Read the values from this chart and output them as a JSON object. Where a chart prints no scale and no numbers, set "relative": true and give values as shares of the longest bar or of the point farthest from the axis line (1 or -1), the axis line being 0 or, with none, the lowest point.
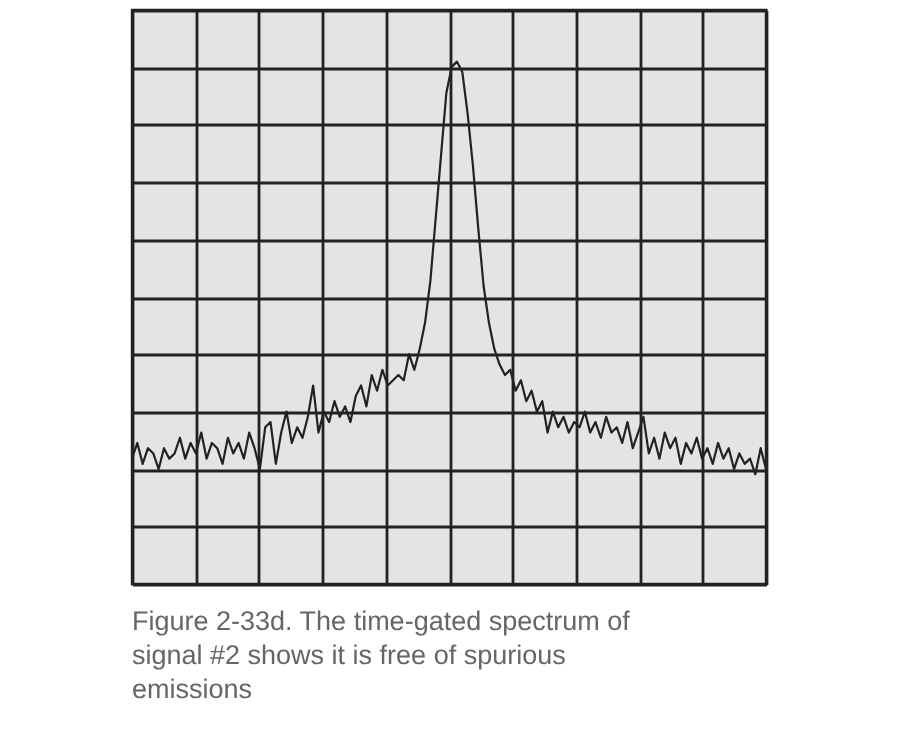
{
  "chart_data": {
    "type": "line",
    "relative": true,
    "grid": true,
    "categories": [
      null,
      null,
      null,
      null,
      null,
      null,
      null,
      null,
      null,
      null,
      null,
      null,
      null,
      null,
      null,
      null,
      null,
      null,
      null,
      null,
      null,
      null,
      null,
      null,
      null,
      null,
      null,
      null,
      null,
      null,
      null,
      null,
      null,
      null,
      null,
      null,
      null,
      null,
      null,
      null,
      null,
      null,
      null,
      null,
      null,
      null,
      null,
      null,
      null,
      null,
      null,
      null,
      null,
      null,
      null,
      null,
      null,
      null,
      null,
      null,
      null,
      null,
      null,
      null,
      null,
      null,
      null,
      null,
      null,
      null,
      null,
      null,
      null,
      null,
      null,
      null,
      null,
      null,
      null,
      null,
      null,
      null,
      null,
      null,
      null,
      null,
      null,
      null,
      null,
      null,
      null,
      null,
      null,
      null,
      null,
      null,
      null,
      null,
      null,
      null,
      null,
      null,
      null,
      null,
      null,
      null,
      null,
      null,
      null,
      null,
      null,
      null,
      null,
      null,
      null,
      null,
      null,
      null,
      null,
      null
    ],
    "series": [
      {
        "color": "#222222",
        "values": [
          0.24,
          0.27,
          0.23,
          0.26,
          0.25,
          0.22,
          0.26,
          0.24,
          0.25,
          0.28,
          0.24,
          0.27,
          0.25,
          0.29,
          0.24,
          0.27,
          0.26,
          0.23,
          0.28,
          0.25,
          0.27,
          0.24,
          0.29,
          0.26,
          0.22,
          0.3,
          0.31,
          0.23,
          0.29,
          0.33,
          0.27,
          0.3,
          0.28,
          0.32,
          0.38,
          0.29,
          0.33,
          0.31,
          0.35,
          0.32,
          0.34,
          0.31,
          0.36,
          0.38,
          0.34,
          0.4,
          0.37,
          0.41,
          0.38,
          0.39,
          0.4,
          0.39,
          0.44,
          0.41,
          0.45,
          0.5,
          0.58,
          0.7,
          0.82,
          0.94,
          0.99,
          1.0,
          0.98,
          0.9,
          0.8,
          0.68,
          0.57,
          0.5,
          0.45,
          0.42,
          0.4,
          0.41,
          0.37,
          0.39,
          0.35,
          0.37,
          0.33,
          0.35,
          0.29,
          0.33,
          0.3,
          0.32,
          0.29,
          0.31,
          0.3,
          0.33,
          0.29,
          0.31,
          0.28,
          0.32,
          0.29,
          0.3,
          0.27,
          0.31,
          0.26,
          0.29,
          0.32,
          0.25,
          0.28,
          0.24,
          0.29,
          0.26,
          0.28,
          0.23,
          0.27,
          0.25,
          0.28,
          0.24,
          0.26,
          0.23,
          0.27,
          0.24,
          0.26,
          0.22,
          0.25,
          0.23,
          0.24,
          0.21,
          0.26,
          0.22
        ]
      }
    ],
    "annotations": [
      "Figure 2-33d. The time-gated spectrum of signal #2 shows it is free of spurious emissions"
    ]
  }
}
